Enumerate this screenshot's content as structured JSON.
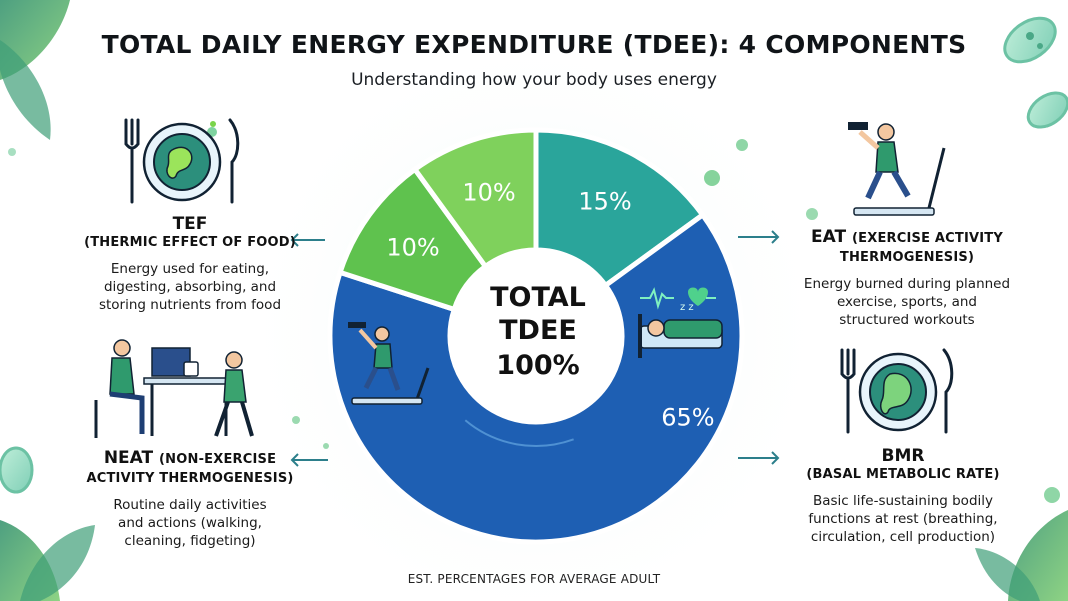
{
  "title": "TOTAL DAILY ENERGY EXPENDITURE (TDEE): 4 COMPONENTS",
  "subtitle": "Understanding how your body uses energy",
  "center": {
    "line1": "TOTAL",
    "line2": "TDEE",
    "line3": "100%"
  },
  "footer": "EST. PERCENTAGES FOR AVERAGE ADULT",
  "components": {
    "tef": {
      "abbr": "TEF",
      "full": "(THERMIC EFFECT OF FOOD)",
      "desc": [
        "Energy used for eating,",
        "digesting, absorbing, and",
        "storing nutrients from food"
      ]
    },
    "neat": {
      "abbr": "NEAT",
      "full_a": "(NON-EXERCISE",
      "full_b": "ACTIVITY THERMOGENESIS)",
      "desc": [
        "Routine daily activities",
        "and actions (walking,",
        "cleaning, fidgeting)"
      ]
    },
    "eat": {
      "abbr": "EAT",
      "full_a": "(EXERCISE ACTIVITY",
      "full_b": "THERMOGENESIS)",
      "desc": [
        "Energy burned during planned",
        "exercise, sports, and",
        "structured workouts"
      ]
    },
    "bmr": {
      "abbr": "BMR",
      "full": "(BASAL METABOLIC RATE)",
      "desc": [
        "Basic life-sustaining bodily",
        "functions at rest (breathing,",
        "circulation, cell production)"
      ]
    }
  },
  "chart_data": {
    "type": "pie",
    "labels": [
      "15%",
      "65%",
      "10%",
      "10%"
    ],
    "values": [
      15,
      65,
      10,
      10
    ],
    "colors": [
      "#2aa59b",
      "#1e5fb3",
      "#5fc24e",
      "#7fd15c"
    ]
  },
  "icons": [
    "plate-icon",
    "runner-treadmill-icon",
    "desk-worker-icon",
    "sleeping-person-icon",
    "dumbbell-treadmill-icon",
    "stomach-plate-icon"
  ]
}
